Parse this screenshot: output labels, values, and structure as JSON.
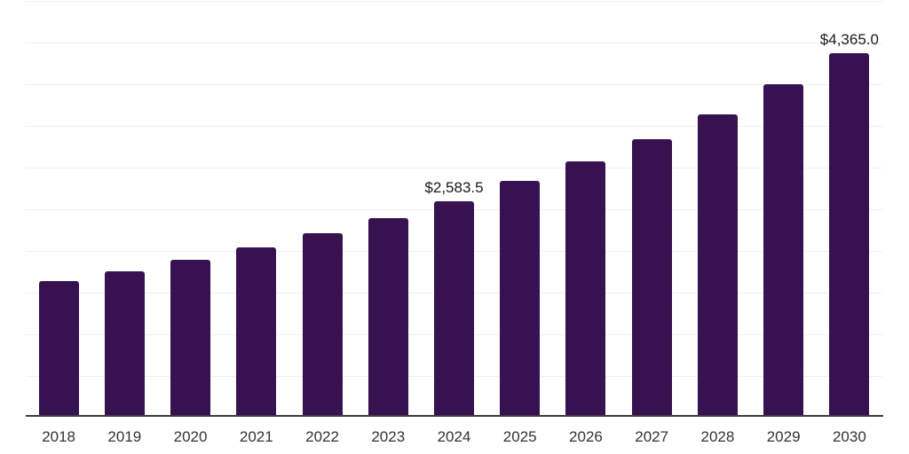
{
  "chart_data": {
    "type": "bar",
    "title": "",
    "xlabel": "",
    "ylabel": "",
    "categories": [
      "2018",
      "2019",
      "2020",
      "2021",
      "2022",
      "2023",
      "2024",
      "2025",
      "2026",
      "2027",
      "2028",
      "2029",
      "2030"
    ],
    "values": [
      1630,
      1748,
      1885,
      2030,
      2200,
      2382,
      2583.5,
      2825,
      3060,
      3330,
      3625,
      3985,
      4365
    ],
    "data_labels": [
      "",
      "",
      "",
      "",
      "",
      "",
      "$2,583.5",
      "",
      "",
      "",
      "",
      "",
      "$4,365.0"
    ],
    "ylim": [
      0,
      5000
    ],
    "gridline_step": 500,
    "grid": true,
    "legend_position": "none",
    "y_tick_labels_visible": false,
    "notes": "values for unlabeled bars estimated from gridlines; only 2024 and 2030 carry data labels"
  },
  "colors": {
    "bar": "#371150",
    "gridline": "#f0f0f0",
    "axis_line": "#3d3d3d",
    "x_label": "#333333",
    "data_label": "#1a1a1a",
    "background": "#ffffff"
  }
}
